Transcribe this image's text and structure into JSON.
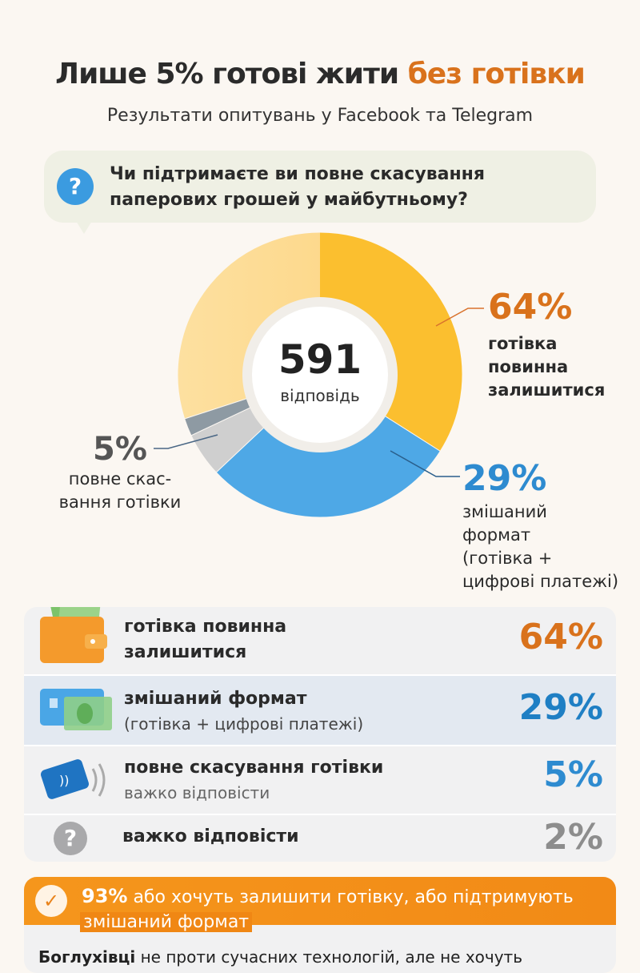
{
  "title": {
    "part1": "Лише 5% готові жити ",
    "part2": "без готівки"
  },
  "subtitle": "Результати опитувань у Facebook та Telegram",
  "question": {
    "icon": "question-icon",
    "line1": "Чи підтримаєте ви повне скасування",
    "line2": "паперових грошей у майбутньому?"
  },
  "center": {
    "total": "591",
    "label": "відповідь"
  },
  "callouts": {
    "cash": {
      "pct": "64%",
      "lines": [
        "готівка",
        "повинна",
        "залишитися"
      ]
    },
    "mixed": {
      "pct": "29%",
      "lines": [
        "змішаний",
        "формат",
        "(готівка +",
        "цифрові платежі)"
      ]
    },
    "cashless": {
      "pct": "5%",
      "lines": [
        "повне скас-",
        "вання готівки"
      ]
    }
  },
  "rows": [
    {
      "icon": "wallet-icon",
      "title": "готівка повинна",
      "title2": "залишитися",
      "pct": "64%",
      "color": "#d9721c"
    },
    {
      "icon": "card-and-cash-icon",
      "title": "змішаний формат",
      "sub": "(готівка + цифрові платежі)",
      "pct": "29%",
      "color": "#1f7fc4"
    },
    {
      "icon": "contactless-card-icon",
      "title": "повне скасування готівки",
      "sub": "важко відповісти",
      "pct": "5%",
      "color": "#2e8bd0"
    },
    {
      "icon": "question-icon",
      "title": "важко відповісти",
      "pct": "2%",
      "color": "#8d8d8d"
    }
  ],
  "footer": {
    "pct": "93%",
    "line1": " або хочуть залишити готівку, або підтримують",
    "line2": "змішаний формат",
    "body_bold": "Боглухівці",
    "body": " не проти сучасних технологій, але не хочуть"
  },
  "chart_data": {
    "type": "pie",
    "title": "Чи підтримаєте ви повне скасування паперових грошей у майбутньому?",
    "categories": [
      "готівка повинна залишитися",
      "змішаний формат (готівка + цифрові платежі)",
      "повне скасування готівки",
      "важко відповісти"
    ],
    "values": [
      64,
      29,
      5,
      2
    ],
    "colors": [
      "#fbbf2f",
      "#4ea8e6",
      "#cfcfcf",
      "#8e9aa3"
    ],
    "total": 591
  }
}
